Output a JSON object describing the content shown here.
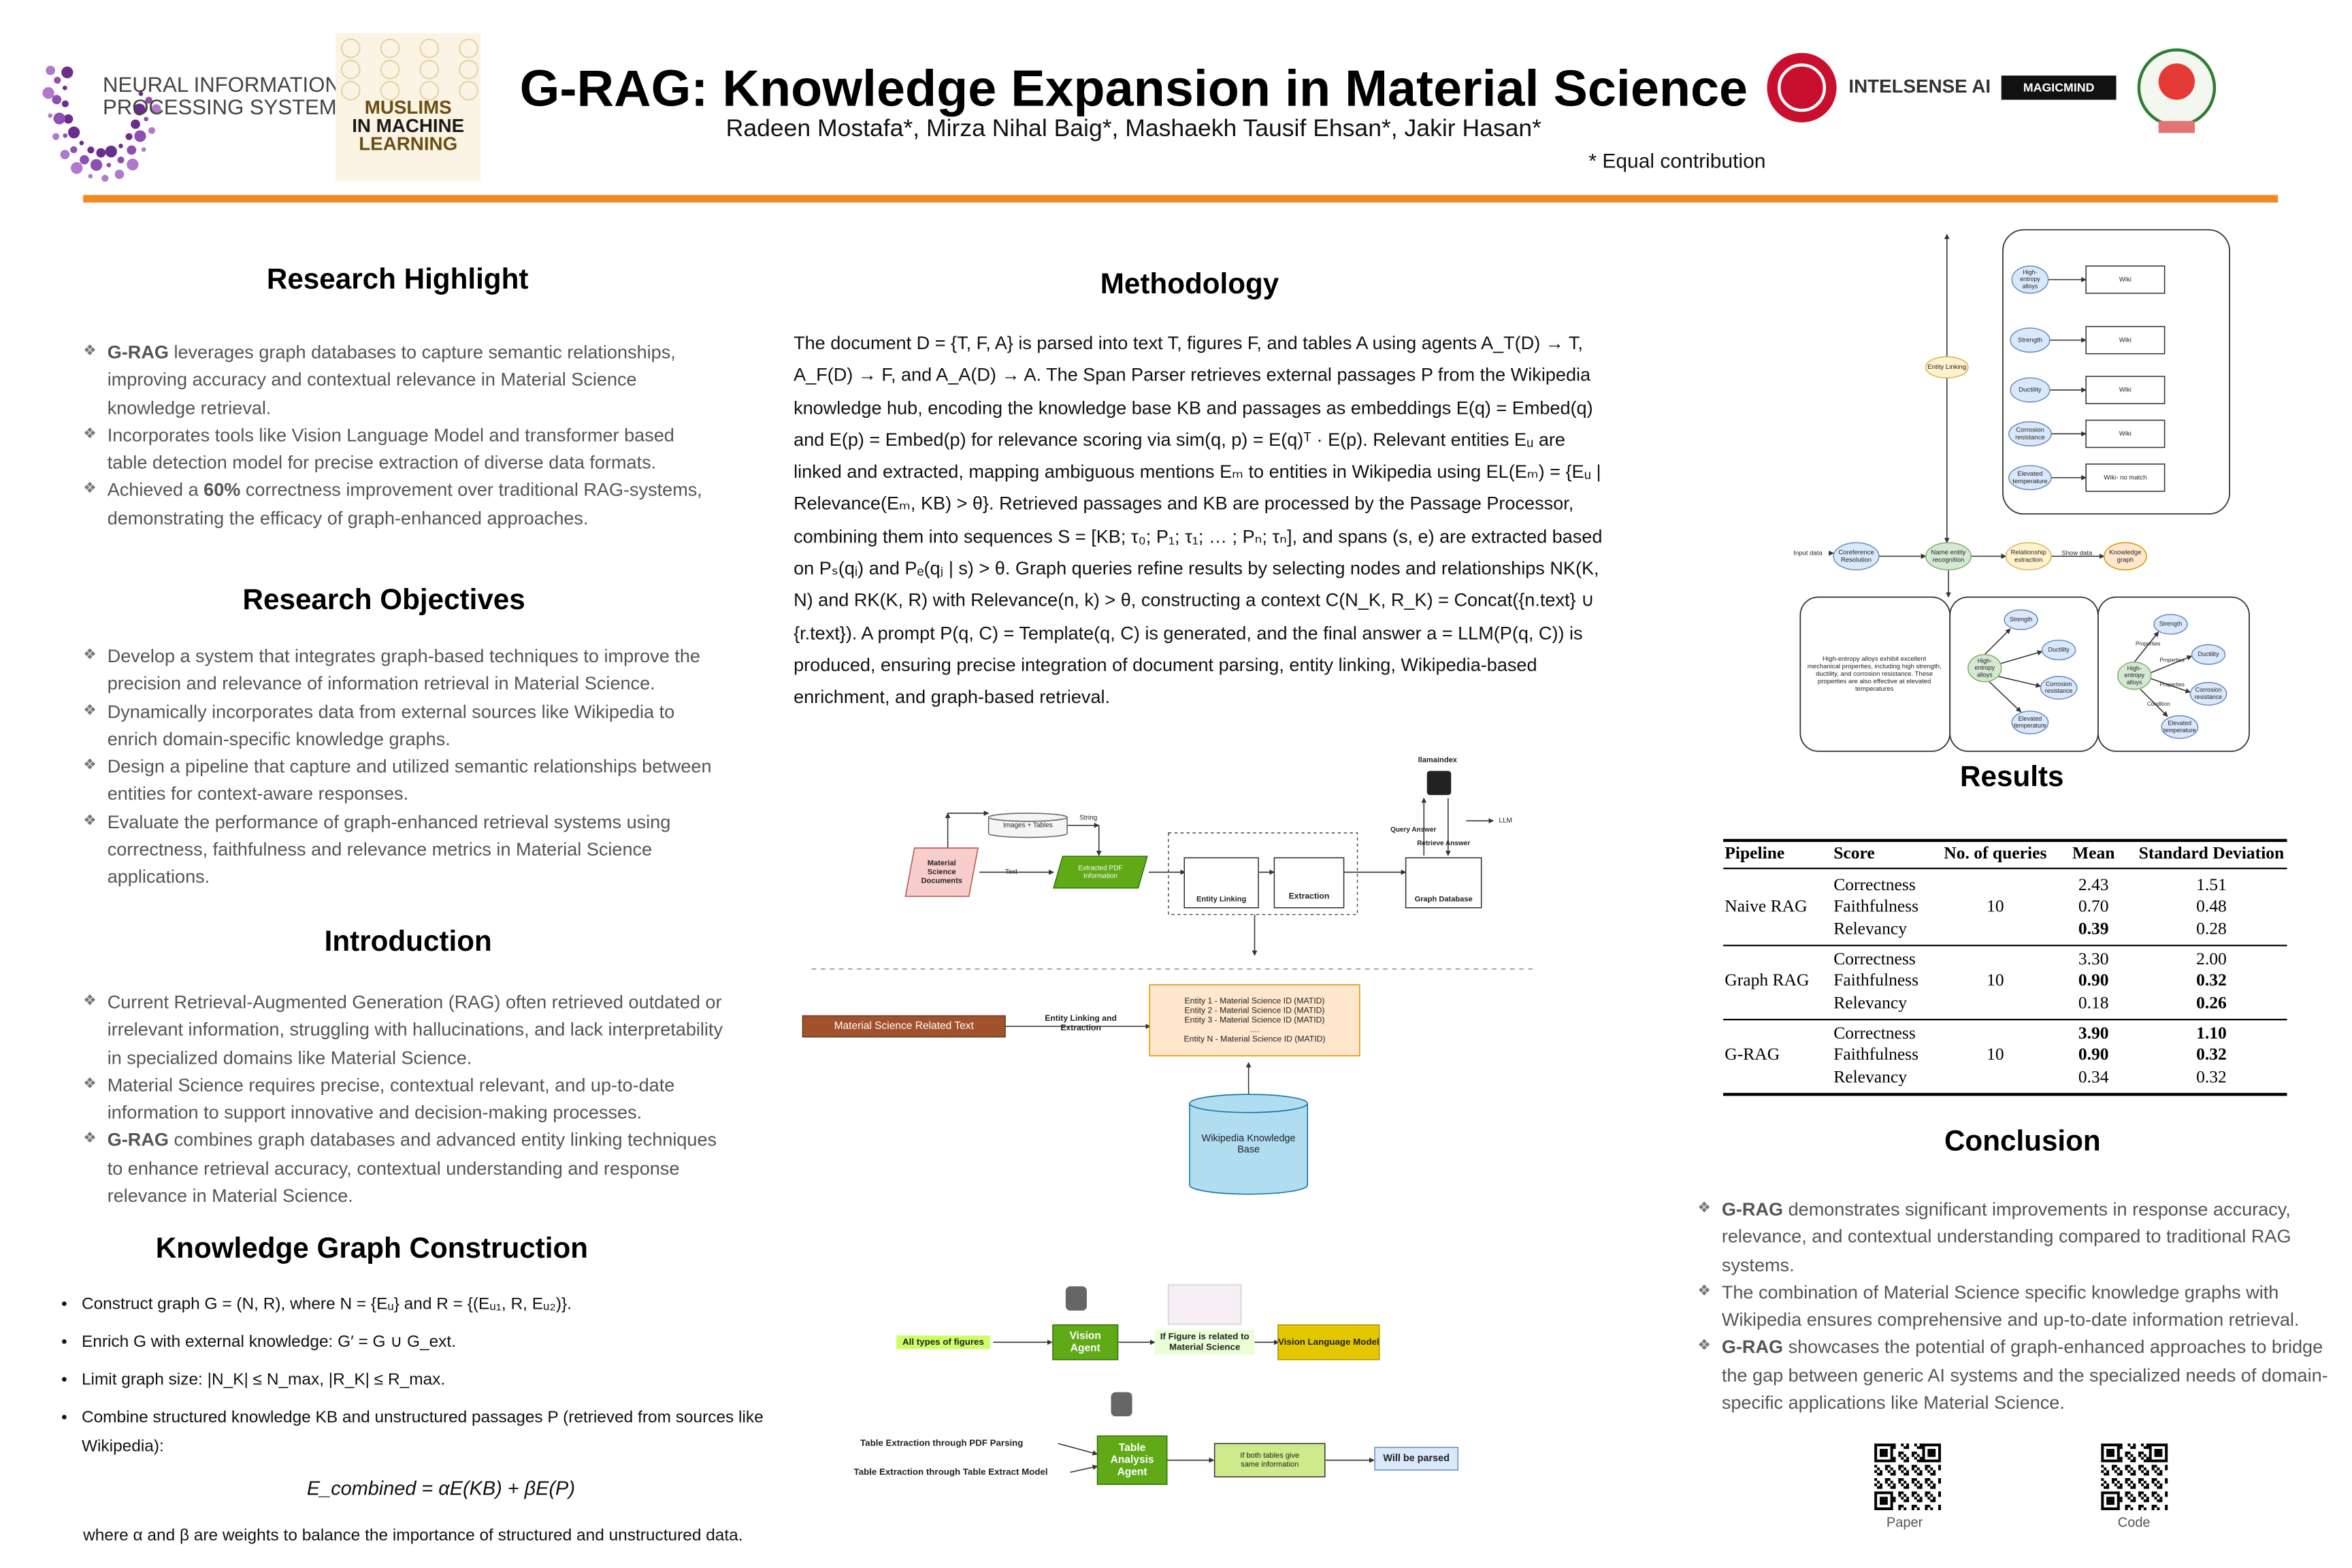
{
  "header": {
    "title": "G-RAG: Knowledge Expansion in Material Science",
    "authors": "Radeen Mostafa*, Mirza Nihal Baig*, Mashaekh Tausif Ehsan*, Jakir Hasan*",
    "note": "* Equal contribution",
    "logos": {
      "neurips": [
        "NEURAL INFORMATION",
        "PROCESSING SYSTEMS"
      ],
      "miml": [
        "MUSLIMS",
        "IN MACHINE",
        "LEARNING"
      ],
      "intelsense": "INTELSENSE AI",
      "magicmind": "MAGICMIND"
    }
  },
  "highlight": {
    "heading": "Research Highlight",
    "bullets": [
      [
        {
          "b": "G-RAG"
        },
        " leverages graph databases to capture semantic relationships, improving accuracy and contextual relevance in Material Science knowledge retrieval."
      ],
      "Incorporates  tools like Vision Language Model and transformer based table detection model for precise extraction of diverse data formats.",
      [
        "Achieved a ",
        {
          "b": "60%"
        },
        " correctness improvement over traditional RAG-systems, demonstrating the efficacy of graph-enhanced approaches."
      ]
    ]
  },
  "objectives": {
    "heading": "Research Objectives",
    "bullets": [
      "Develop a system that integrates graph-based techniques to improve the precision and relevance of information retrieval in Material Science.",
      "Dynamically incorporates data from external sources like Wikipedia to enrich domain-specific knowledge graphs.",
      "Design a pipeline that capture and utilized semantic relationships between entities for context-aware responses.",
      "Evaluate the performance of graph-enhanced retrieval systems using correctness, faithfulness and relevance metrics in Material Science applications."
    ]
  },
  "introduction": {
    "heading": "Introduction",
    "bullets": [
      "Current Retrieval-Augmented Generation (RAG) often retrieved outdated or irrelevant information, struggling with hallucinations, and lack interpretability in specialized domains like Material Science.",
      "Material Science requires precise, contextual relevant, and up-to-date information to support innovative and decision-making processes.",
      [
        {
          "b": "G-RAG"
        },
        " combines graph databases and advanced entity linking techniques to enhance retrieval accuracy, contextual understanding and response relevance in Material Science."
      ]
    ]
  },
  "kg_construction": {
    "heading": "Knowledge Graph Construction",
    "bullets": [
      "Construct graph G = (N, R), where N = {Eᵤ} and R = {(Eᵤ₁, R, Eᵤ₂)}.",
      "Enrich G with external knowledge: G′ = G ∪ G_ext.",
      "Limit graph size: |N_K| ≤ N_max, |R_K| ≤ R_max.",
      "Combine structured knowledge KB and unstructured passages P (retrieved from sources like Wikipedia):"
    ],
    "equation": "E_combined = αE(KB) + βE(P)",
    "note": "where α and β are weights to balance the importance of structured and unstructured data."
  },
  "methodology": {
    "heading": "Methodology",
    "text": "The document D = {T, F, A} is parsed into text T, figures F, and tables A using agents A_T(D) → T, A_F(D) → F, and A_A(D) → A. The Span Parser retrieves external passages P from the Wikipedia knowledge hub, encoding the knowledge base KB and passages as embeddings E(q) = Embed(q) and E(p) = Embed(p) for relevance scoring via sim(q, p) = E(q)ᵀ · E(p). Relevant entities Eᵤ are linked and extracted, mapping ambiguous mentions Eₘ to entities in Wikipedia using EL(Eₘ) = {Eᵤ | Relevance(Eₘ, KB) > θ}. Retrieved passages and KB are processed by the Passage Processor, combining them into sequences S = [KB; τ₀; P₁; τ₁; … ; Pₙ; τₙ], and spans (s, e) are extracted based on Pₛ(qᵢ) and Pₑ(qⱼ | s) > θ. Graph queries refine results by selecting nodes and relationships NK(K, N) and RK(K, R) with Relevance(n, k) > θ, constructing a context C(N_K, R_K) = Concat({n.text} ∪ {r.text}). A prompt P(q, C) = Template(q, C) is generated, and the final answer a = LLM(P(q, C)) is produced, ensuring precise integration of document parsing, entity linking, Wikipedia-based enrichment, and graph-based retrieval."
  },
  "pipeline_diagram": {
    "labels": [
      [
        "Material",
        "Science",
        "Documents"
      ],
      "Images + Tables",
      "String",
      "Text",
      [
        "Extracted PDF",
        "Information"
      ],
      "Entity Linking",
      "Extraction",
      "Graph Database",
      "llamaindex",
      "Query Answer",
      "Retrieve Answer",
      "LLM",
      "Material Science Related Text",
      [
        "Entity Linking and",
        "Extraction"
      ],
      [
        "Entity 1 - Material Science ID (MATID)",
        "Entity 2 - Material Science ID (MATID)",
        "Entity 3 - Material Science ID (MATID)",
        "....",
        "Entity N - Material Science ID (MATID)"
      ],
      [
        "Wikipedia Knowledge",
        "Base"
      ],
      "All types of figures",
      [
        "Vision",
        "Agent"
      ],
      [
        "If Figure is related to",
        "Material Science"
      ],
      "Vision Language Model",
      "Table Extraction through PDF Parsing",
      "Table Extraction through Table Extract Model",
      [
        "Table",
        "Analysis",
        "Agent"
      ],
      [
        "If both tables give",
        "same information"
      ],
      "Will be parsed"
    ]
  },
  "kg_diagram": {
    "labels": [
      [
        "High-",
        "entropy",
        "alloys"
      ],
      "Strength",
      "Ductility",
      [
        "Corrosion",
        "resistance"
      ],
      [
        "Elevated",
        "temperature"
      ],
      "Wiki",
      "Wiki",
      "Wiki",
      "Wiki",
      "Wiki- no match",
      "Entity Linking",
      "Input data",
      [
        "Coreference",
        "Resolution"
      ],
      [
        "Name entity",
        "recognition"
      ],
      [
        "Relationship",
        "extraction"
      ],
      "Show data",
      [
        "Knowledge",
        "graph"
      ],
      [
        "High-entropy alloys  exhibit excellent",
        "mechanical properties, including high strength,",
        "ductility, and corrosion resistance. These",
        "properties are also effective at elevated",
        "temperatures"
      ],
      "Strength",
      "Ductility",
      [
        "High-",
        "entropy",
        "alloys"
      ],
      [
        "Corrosion",
        "resistance"
      ],
      [
        "Elevated",
        "temperature"
      ],
      "Strength",
      "Ductility",
      [
        "High-",
        "entropy",
        "alloys"
      ],
      [
        "Corrosion",
        "resistance"
      ],
      [
        "Elevated",
        "temperature"
      ],
      "Properties",
      "Properties",
      "Properties",
      "Condition"
    ]
  },
  "results": {
    "heading": "Results",
    "columns": [
      "Pipeline",
      "Score",
      "No. of queries",
      "Mean",
      "Standard Deviation"
    ],
    "groups": [
      {
        "pipeline": "Naive RAG",
        "queries": "10",
        "rows": [
          [
            "Correctness",
            "2.43",
            "1.51"
          ],
          [
            "Faithfulness",
            "0.70",
            "0.48"
          ],
          [
            "Relevancy",
            {
              "b": "0.39"
            },
            "0.28"
          ]
        ]
      },
      {
        "pipeline": "Graph RAG",
        "queries": "10",
        "rows": [
          [
            "Correctness",
            "3.30",
            "2.00"
          ],
          [
            "Faithfulness",
            {
              "b": "0.90"
            },
            {
              "b": "0.32"
            }
          ],
          [
            "Relevancy",
            "0.18",
            {
              "b": "0.26"
            }
          ]
        ]
      },
      {
        "pipeline": "G-RAG",
        "queries": "10",
        "rows": [
          [
            "Correctness",
            {
              "b": "3.90"
            },
            {
              "b": "1.10"
            }
          ],
          [
            "Faithfulness",
            {
              "b": "0.90"
            },
            {
              "b": "0.32"
            }
          ],
          [
            "Relevancy",
            "0.34",
            "0.32"
          ]
        ]
      }
    ]
  },
  "conclusion": {
    "heading": "Conclusion",
    "bullets": [
      [
        {
          "b": "G-RAG"
        },
        " demonstrates significant improvements in response accuracy, relevance, and contextual understanding compared to traditional RAG systems."
      ],
      "The combination of Material Science specific knowledge graphs with Wikipedia ensures comprehensive and up-to-date information retrieval.",
      [
        {
          "b": "G-RAG"
        },
        " showcases the potential of graph-enhanced approaches to bridge the gap between generic AI systems and the specialized needs of domain-specific applications like Material Science."
      ]
    ]
  },
  "qr": {
    "paper": "Paper",
    "code": "Code"
  }
}
